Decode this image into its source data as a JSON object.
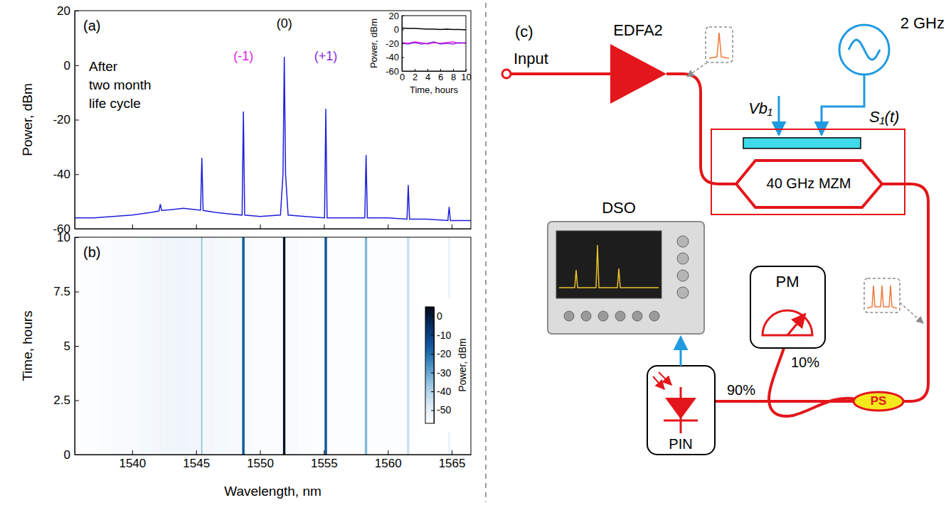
{
  "chart_data": [
    {
      "type": "line",
      "title": "(a)",
      "caption": [
        "After",
        "two month",
        "life cycle"
      ],
      "ylabel": "Power, dBm",
      "x": [
        1535.5,
        1537,
        1538.5,
        1540,
        1541.5,
        1542.1,
        1542.2,
        1542.3,
        1543,
        1544,
        1545,
        1545.35,
        1545.45,
        1545.55,
        1546.5,
        1547.5,
        1548.6,
        1548.7,
        1548.8,
        1550,
        1551.6,
        1551.8,
        1551.9,
        1552,
        1552.2,
        1553.5,
        1555.05,
        1555.15,
        1555.25,
        1557,
        1558.2,
        1558.3,
        1558.4,
        1560,
        1561.5,
        1561.6,
        1561.7,
        1563,
        1564.7,
        1564.8,
        1564.9,
        1566.5
      ],
      "series": [
        {
          "color": "#1f1fdc",
          "values": [
            -56,
            -56,
            -55.5,
            -55,
            -54,
            -53.5,
            -51,
            -53.3,
            -53,
            -52.5,
            -53,
            -53.2,
            -34,
            -53.3,
            -54,
            -54.5,
            -55,
            -17,
            -55,
            -55.5,
            -55,
            -40,
            3,
            -40,
            -55,
            -55.5,
            -56,
            -16,
            -56,
            -56,
            -56,
            -33,
            -56,
            -56,
            -56.5,
            -44,
            -56.5,
            -56.5,
            -57,
            -52,
            -57,
            -57
          ]
        }
      ],
      "annotations": [
        {
          "text": "(0)",
          "x": 1551.9,
          "y": 15,
          "color": "#000000"
        },
        {
          "text": "(-1)",
          "x": 1548.7,
          "y": 3,
          "color": "#e619e6"
        },
        {
          "text": "(+1)",
          "x": 1555.15,
          "y": 3,
          "color": "#8a2be2"
        }
      ],
      "xlim": [
        1535.5,
        1566.5
      ],
      "xticks": [
        1540,
        1545,
        1550,
        1555,
        1560,
        1565
      ],
      "ylim": [
        -60,
        20
      ],
      "yticks": [
        -60,
        -40,
        -20,
        0,
        20
      ],
      "tick_labels": "y",
      "grid": false
    },
    {
      "type": "line",
      "xlabel": "Time, hours",
      "ylabel": "Power, dBm",
      "x": [
        0,
        1,
        2,
        3,
        4,
        5,
        6,
        7,
        8,
        9,
        10
      ],
      "series": [
        {
          "color": "#000000",
          "values": [
            2,
            1.5,
            1.5,
            1,
            0.5,
            0.5,
            0,
            0.5,
            0,
            0,
            -0.5
          ]
        },
        {
          "color": "#e619e6",
          "values": [
            -19,
            -20,
            -18,
            -19,
            -21,
            -19,
            -20,
            -19,
            -18,
            -20,
            -19
          ]
        },
        {
          "color": "#8a2be2",
          "values": [
            -20,
            -21,
            -19,
            -21,
            -20,
            -18,
            -21,
            -20,
            -21,
            -19,
            -20
          ]
        }
      ],
      "xlim": [
        0,
        10
      ],
      "xticks": [
        0,
        2,
        4,
        6,
        8,
        10
      ],
      "ylim": [
        -60,
        20
      ],
      "yticks": [
        -60,
        -40,
        -20,
        0,
        20
      ],
      "grid": false
    },
    {
      "type": "heatmap",
      "title": "(b)",
      "xlabel": "Wavelength, nm",
      "ylabel": "Time, hours",
      "x_bins": [
        1535.5,
        1536.5,
        1537.5,
        1538.5,
        1539.5,
        1540.5,
        1541.5,
        1542.15,
        1542.25,
        1543.5,
        1544.5,
        1545.4,
        1545.5,
        1546.5,
        1547.5,
        1548.6,
        1548.8,
        1549.5,
        1550.5,
        1551.5,
        1551.8,
        1552,
        1553,
        1554,
        1555.05,
        1555.25,
        1556,
        1557,
        1558.2,
        1558.4,
        1559.5,
        1560.5,
        1561.5,
        1561.7,
        1562.5,
        1563.5,
        1564.7,
        1564.9,
        1565.5,
        1566.5
      ],
      "y_bins": [
        0,
        10
      ],
      "cells": [
        [
          -56,
          -56,
          -55.5,
          -55,
          -55,
          -54,
          -53.5,
          -51,
          -53,
          -52.5,
          -53,
          -34,
          -53.5,
          -54,
          -54.5,
          -17,
          -55,
          -55.5,
          -55.5,
          -55,
          3,
          -55,
          -55.5,
          -56,
          -16,
          -56,
          -56,
          -56,
          -33,
          -56,
          -56,
          -56.5,
          -44,
          -56.5,
          -56.5,
          -57,
          -52,
          -57,
          -57
        ]
      ],
      "colorbar": {
        "label": "Power, dBm",
        "range": [
          -57,
          5
        ],
        "ticks": [
          0,
          -10,
          -20,
          -30,
          -40,
          -50
        ]
      },
      "xlim": [
        1535.5,
        1566.5
      ],
      "xticks": [
        1540,
        1545,
        1550,
        1555,
        1560,
        1565
      ],
      "ylim": [
        0,
        10
      ],
      "yticks": [
        0,
        2.5,
        5,
        7.5,
        10
      ],
      "grid": false
    }
  ],
  "diagram": {
    "label": "(c)",
    "nodes": {
      "input": "Input",
      "amplifier": "EDFA2",
      "generator": "2 GHz",
      "bias": "Vb₁",
      "drive": "S₁(t)",
      "modulator": "40 GHz MZM",
      "scope": "DSO",
      "power_meter": "PM",
      "splitter": "PS",
      "detector": "PIN"
    },
    "ratios": {
      "monitor": "10%",
      "detector": "90%"
    }
  }
}
